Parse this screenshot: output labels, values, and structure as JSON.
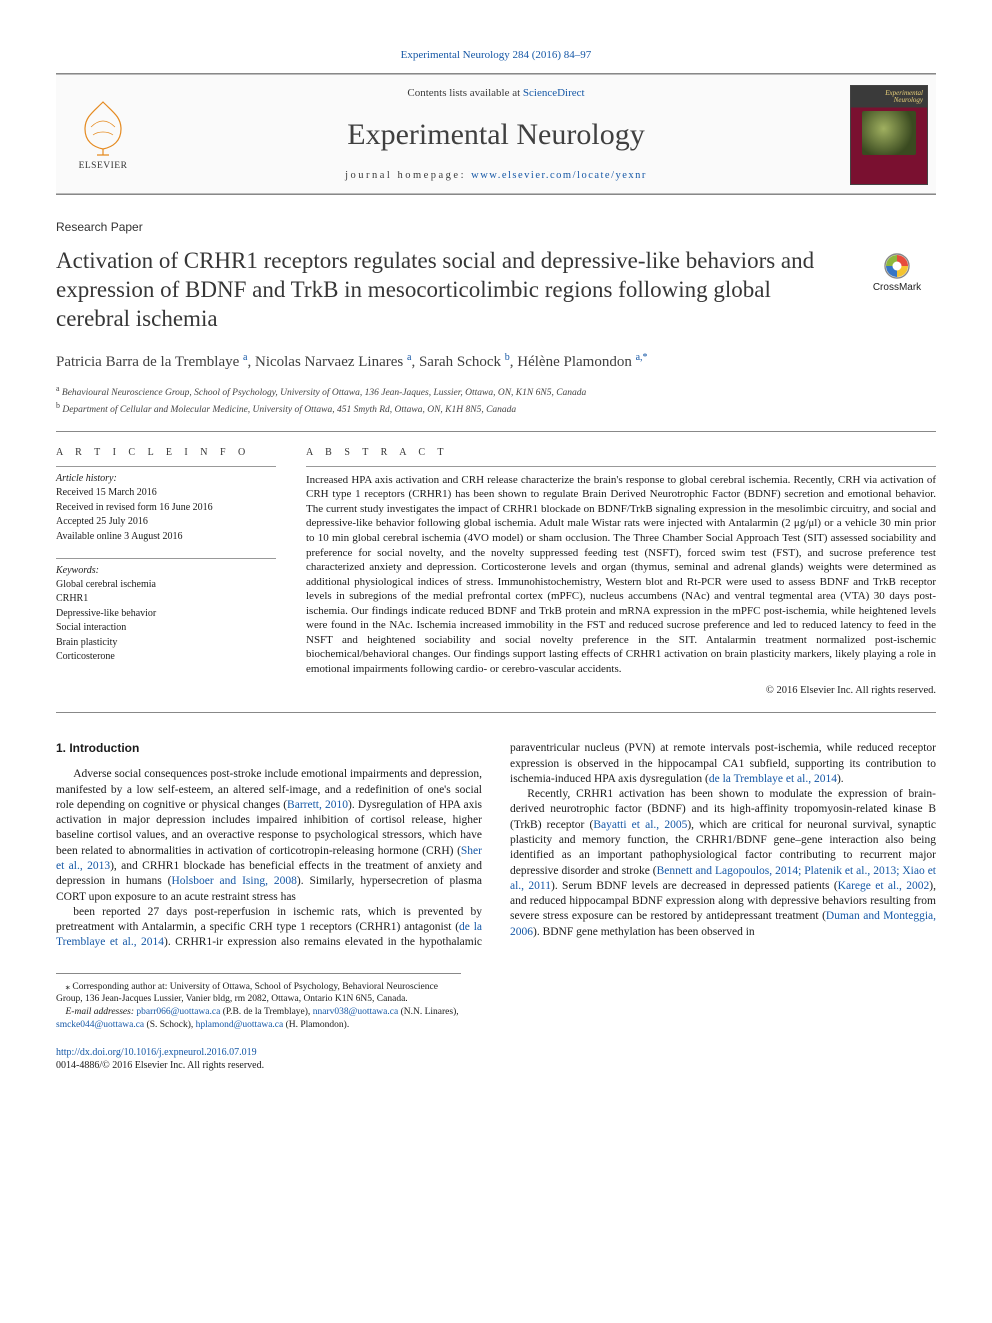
{
  "topref": {
    "journal": "Experimental Neurology",
    "volume": "284 (2016) 84–97",
    "url_text": "Experimental Neurology 284 (2016) 84–97"
  },
  "masthead": {
    "sd_prefix": "Contents lists available at ",
    "sd_link": "ScienceDirect",
    "journal_name": "Experimental Neurology",
    "homepage_prefix": "journal homepage: ",
    "homepage_url": "www.elsevier.com/locate/yexnr",
    "elsevier_wordmark": "ELSEVIER",
    "cover_title": "Experimental Neurology"
  },
  "article_type": "Research Paper",
  "title": "Activation of CRHR1 receptors regulates social and depressive-like behaviors and expression of BDNF and TrkB in mesocorticolimbic regions following global cerebral ischemia",
  "crossmark_text": "CrossMark",
  "authors_html": "Patricia Barra de la Tremblaye <sup>a</sup>, Nicolas Narvaez Linares <sup>a</sup>, Sarah Schock <sup>b</sup>, Hélène Plamondon <sup>a,*</sup>",
  "affiliations": [
    {
      "sup": "a",
      "text": "Behavioural Neuroscience Group, School of Psychology, University of Ottawa, 136 Jean-Jaques, Lussier, Ottawa, ON, K1N 6N5, Canada"
    },
    {
      "sup": "b",
      "text": "Department of Cellular and Molecular Medicine, University of Ottawa, 451 Smyth Rd, Ottawa, ON, K1H 8N5, Canada"
    }
  ],
  "info": {
    "heading": "A R T I C L E   I N F O",
    "history_label": "Article history:",
    "received": "Received 15 March 2016",
    "revised": "Received in revised form 16 June 2016",
    "accepted": "Accepted 25 July 2016",
    "online": "Available online 3 August 2016",
    "keywords_label": "Keywords:",
    "keywords": [
      "Global cerebral ischemia",
      "CRHR1",
      "Depressive-like behavior",
      "Social interaction",
      "Brain plasticity",
      "Corticosterone"
    ]
  },
  "abstract": {
    "heading": "A B S T R A C T",
    "text": "Increased HPA axis activation and CRH release characterize the brain's response to global cerebral ischemia. Recently, CRH via activation of CRH type 1 receptors (CRHR1) has been shown to regulate Brain Derived Neurotrophic Factor (BDNF) secretion and emotional behavior. The current study investigates the impact of CRHR1 blockade on BDNF/TrkB signaling expression in the mesolimbic circuitry, and social and depressive-like behavior following global ischemia. Adult male Wistar rats were injected with Antalarmin (2 μg/μl) or a vehicle 30 min prior to 10 min global cerebral ischemia (4VO model) or sham occlusion. The Three Chamber Social Approach Test (SIT) assessed sociability and preference for social novelty, and the novelty suppressed feeding test (NSFT), forced swim test (FST), and sucrose preference test characterized anxiety and depression. Corticosterone levels and organ (thymus, seminal and adrenal glands) weights were determined as additional physiological indices of stress. Immunohistochemistry, Western blot and Rt-PCR were used to assess BDNF and TrkB receptor levels in subregions of the medial prefrontal cortex (mPFC), nucleus accumbens (NAc) and ventral tegmental area (VTA) 30 days post-ischemia. Our findings indicate reduced BDNF and TrkB protein and mRNA expression in the mPFC post-ischemia, while heightened levels were found in the NAc. Ischemia increased immobility in the FST and reduced sucrose preference and led to reduced latency to feed in the NSFT and heightened sociability and social novelty preference in the SIT. Antalarmin treatment normalized post-ischemic biochemical/behavioral changes. Our findings support lasting effects of CRHR1 activation on brain plasticity markers, likely playing a role in emotional impairments following cardio- or cerebro-vascular accidents.",
    "copyright": "© 2016 Elsevier Inc. All rights reserved."
  },
  "body": {
    "heading": "1. Introduction",
    "p1": "Adverse social consequences post-stroke include emotional impairments and depression, manifested by a low self-esteem, an altered self-image, and a redefinition of one's social role depending on cognitive or physical changes (Barrett, 2010). Dysregulation of HPA axis activation in major depression includes impaired inhibition of cortisol release, higher baseline cortisol values, and an overactive response to psychological stressors, which have been related to abnormalities in activation of corticotropin-releasing hormone (CRH) (Sher et al., 2013), and CRHR1 blockade has beneficial effects in the treatment of anxiety and depression in humans (Holsboer and Ising, 2008). Similarly, hypersecretion of plasma CORT upon exposure to an acute restraint stress has",
    "p2": "been reported 27 days post-reperfusion in ischemic rats, which is prevented by pretreatment with Antalarmin, a specific CRH type 1 receptors (CRHR1) antagonist (de la Tremblaye et al., 2014). CRHR1-ir expression also remains elevated in the hypothalamic paraventricular nucleus (PVN) at remote intervals post-ischemia, while reduced receptor expression is observed in the hippocampal CA1 subfield, supporting its contribution to ischemia-induced HPA axis dysregulation (de la Tremblaye et al., 2014).",
    "p3": "Recently, CRHR1 activation has been shown to modulate the expression of brain-derived neurotrophic factor (BDNF) and its high-affinity tropomyosin-related kinase B (TrkB) receptor (Bayatti et al., 2005), which are critical for neuronal survival, synaptic plasticity and memory function, the CRHR1/BDNF gene–gene interaction also being identified as an important pathophysiological factor contributing to recurrent major depressive disorder and stroke (Bennett and Lagopoulos, 2014; Platenik et al., 2013; Xiao et al., 2011). Serum BDNF levels are decreased in depressed patients (Karege et al., 2002), and reduced hippocampal BDNF expression along with depressive behaviors resulting from severe stress exposure can be restored by antidepressant treatment (Duman and Monteggia, 2006). BDNF gene methylation has been observed in"
  },
  "footnotes": {
    "corresponding": "* Corresponding author at: University of Ottawa, School of Psychology, Behavioral Neuroscience Group, 136 Jean-Jacques Lussier, Vanier bldg, rm 2082, Ottawa, Ontario K1N 6N5, Canada.",
    "emails_label": "E-mail addresses: ",
    "emails": [
      {
        "addr": "pbarr066@uottawa.ca",
        "who": "(P.B. de la Tremblaye)"
      },
      {
        "addr": "nnarv038@uottawa.ca",
        "who": "(N.N. Linares)"
      },
      {
        "addr": "smcke044@uottawa.ca",
        "who": "(S. Schock)"
      },
      {
        "addr": "hplamond@uottawa.ca",
        "who": "(H. Plamondon)."
      }
    ]
  },
  "bottom": {
    "doi": "http://dx.doi.org/10.1016/j.expneurol.2016.07.019",
    "issn_rights": "0014-4886/© 2016 Elsevier Inc. All rights reserved."
  },
  "links": {
    "color": "#1658a6"
  },
  "intext_cites": [
    "Barrett, 2010",
    "Sher et al., 2013",
    "Holsboer and Ising, 2008",
    "de la Tremblaye et al., 2014",
    "Bayatti et al., 2005",
    "Bennett and Lagopoulos, 2014; Platenik et al., 2013; Xiao et al., 2011",
    "Karege et al., 2002",
    "Duman and Monteggia, 2006"
  ]
}
